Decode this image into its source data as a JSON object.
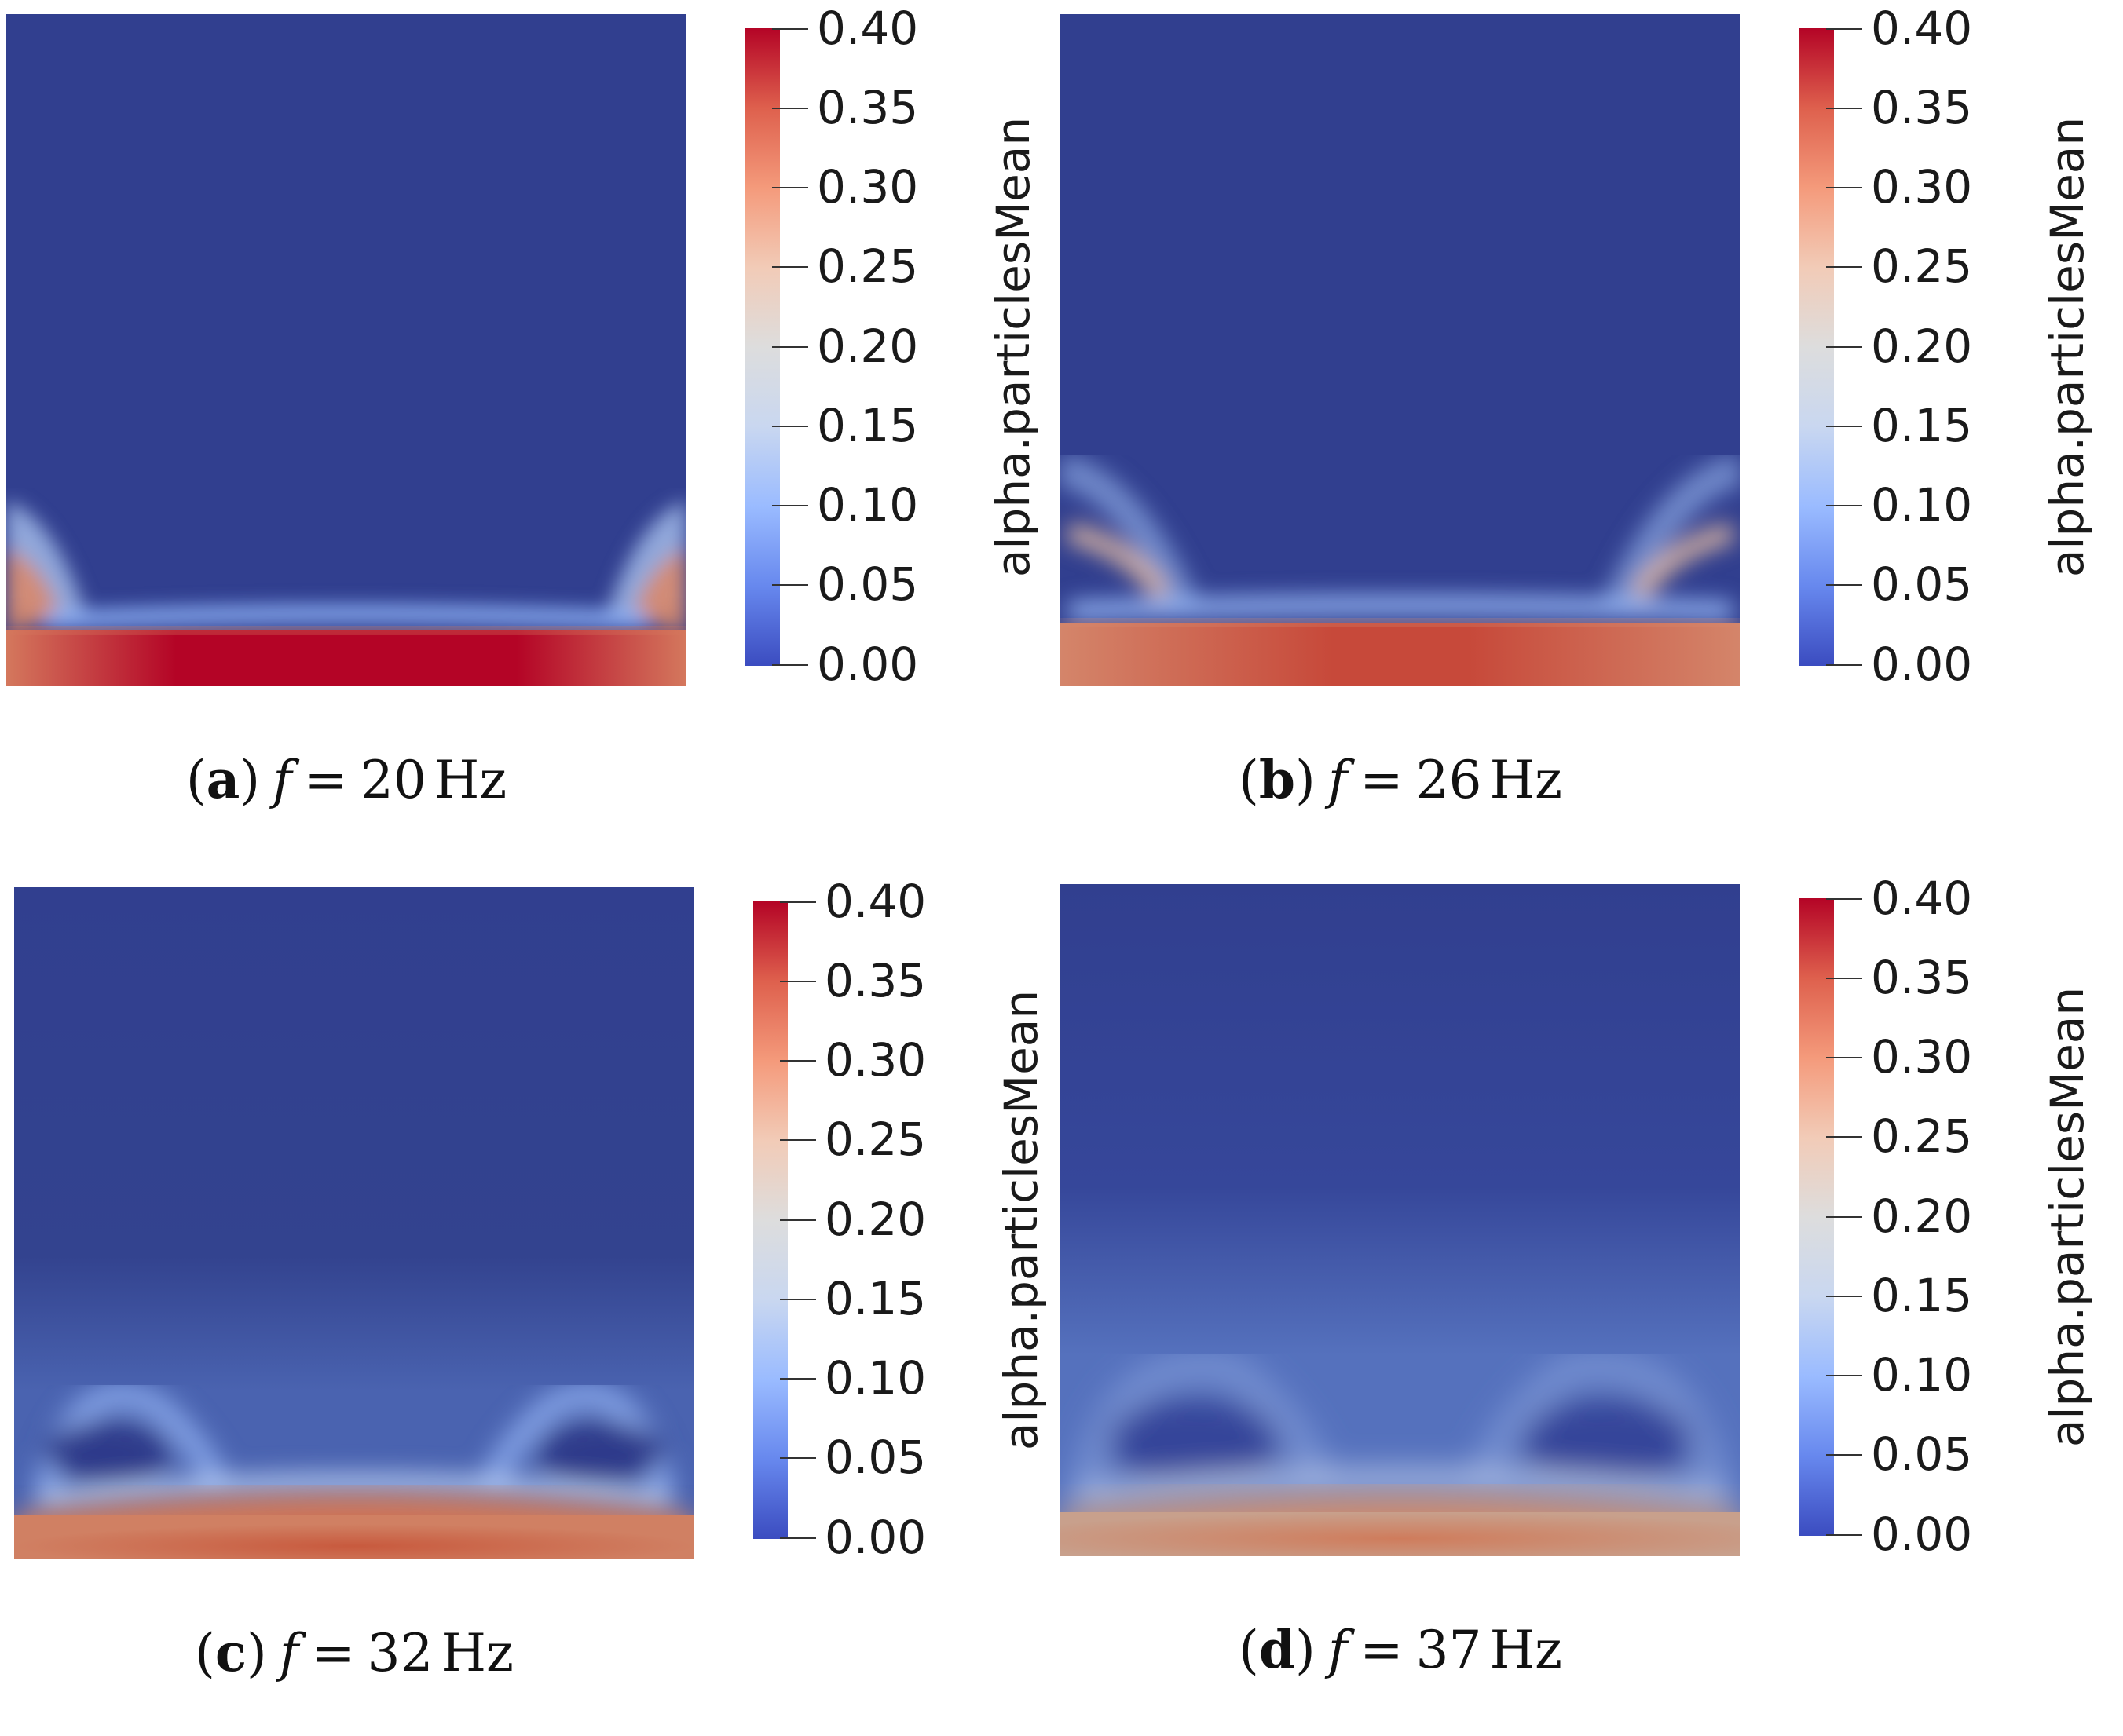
{
  "colorbar": {
    "title": "alpha.particlesMean",
    "ticks": [
      "0.40",
      "0.35",
      "0.30",
      "0.25",
      "0.20",
      "0.15",
      "0.10",
      "0.05",
      "0.00"
    ],
    "range": [
      0.0,
      0.4
    ],
    "colormap": [
      "#3b4cc0",
      "#6788ee",
      "#9abbff",
      "#c9d7f0",
      "#dddddd",
      "#f2cbb7",
      "#f49a7b",
      "#de604d",
      "#b40426"
    ]
  },
  "panels": [
    {
      "label": "a",
      "open": "(",
      "close": ")",
      "variable": "f",
      "equals": "=",
      "value": "20",
      "unit": "Hz",
      "bed_color": "#b40426",
      "bed_mid": "#c8402f",
      "interface_color": "#8fb3f8"
    },
    {
      "label": "b",
      "open": "(",
      "close": ")",
      "variable": "f",
      "equals": "=",
      "value": "26",
      "unit": "Hz",
      "bed_color": "#c9503c",
      "bed_mid": "#c75a43",
      "interface_color": "#97b8f5"
    },
    {
      "label": "c",
      "open": "(",
      "close": ")",
      "variable": "f",
      "equals": "=",
      "value": "32",
      "unit": "Hz",
      "bed_color": "#cb6748",
      "bed_mid": "#d17258",
      "interface_color": "#92b2f2"
    },
    {
      "label": "d",
      "open": "(",
      "close": ")",
      "variable": "f",
      "equals": "=",
      "value": "37",
      "unit": "Hz",
      "bed_color": "#cf7c5c",
      "bed_mid": "#c99984",
      "interface_color": "#8faaec"
    }
  ],
  "background_color": "#313f8f"
}
